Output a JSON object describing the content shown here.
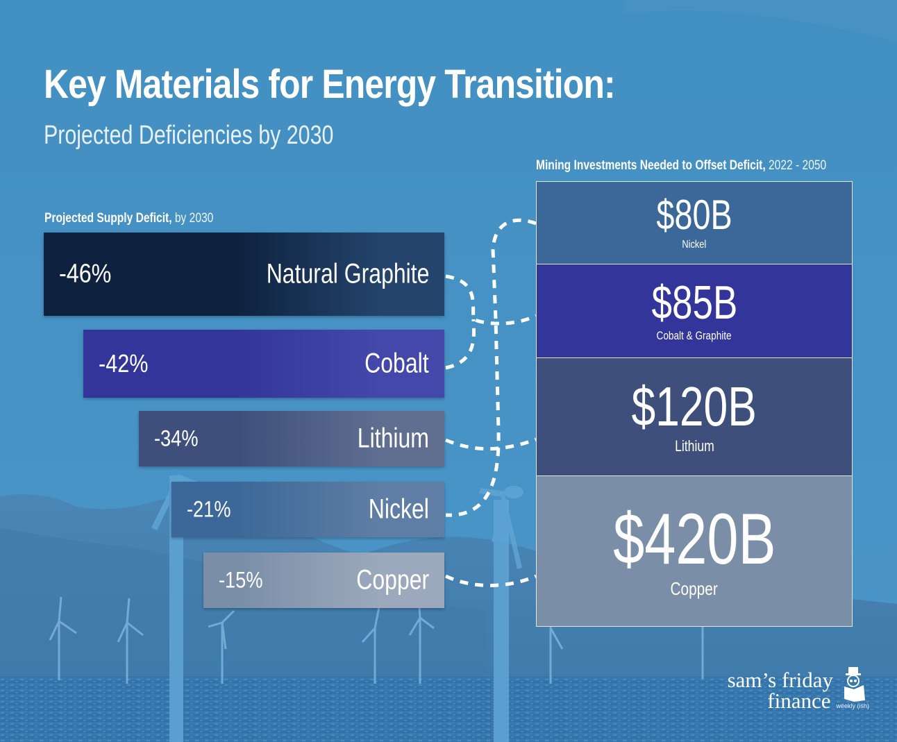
{
  "title": "Key Materials for Energy Transition:",
  "subtitle": "Projected Deficiencies by 2030",
  "left_section": {
    "label_bold": "Projected Supply Deficit,",
    "label_light": " by 2030"
  },
  "right_section": {
    "label_bold": "Mining Investments Needed to Offset Deficit,",
    "label_light": " 2022 - 2050"
  },
  "colors": {
    "background": "#4590c2",
    "natural_graphite": "#0e223f",
    "cobalt": "#33359a",
    "lithium": "#3d4f7a",
    "nickel": "#3b6898",
    "copper": "#7a8ea8",
    "connector": "#ffffff"
  },
  "chart_data": [
    {
      "type": "bar",
      "title": "Projected Supply Deficit, by 2030",
      "orientation": "horizontal",
      "categories": [
        "Natural Graphite",
        "Cobalt",
        "Lithium",
        "Nickel",
        "Copper"
      ],
      "values": [
        -46,
        -42,
        -34,
        -21,
        -15
      ],
      "labels": [
        "-46%",
        "-42%",
        "-34%",
        "-21%",
        "-15%"
      ],
      "unit": "%",
      "xlabel": "",
      "ylabel": ""
    },
    {
      "type": "table",
      "title": "Mining Investments Needed to Offset Deficit, 2022 - 2050",
      "categories": [
        "Nickel",
        "Cobalt & Graphite",
        "Lithium",
        "Copper"
      ],
      "values": [
        80,
        85,
        120,
        420
      ],
      "labels": [
        "$80B",
        "$85B",
        "$120B",
        "$420B"
      ],
      "unit": "USD billions"
    }
  ],
  "links": [
    {
      "from": "Natural Graphite",
      "to": "Cobalt & Graphite"
    },
    {
      "from": "Cobalt",
      "to": "Cobalt & Graphite"
    },
    {
      "from": "Lithium",
      "to": "Lithium"
    },
    {
      "from": "Nickel",
      "to": "Nickel"
    },
    {
      "from": "Copper",
      "to": "Copper"
    }
  ],
  "logo": {
    "line1": "sam’s friday",
    "line2": "finance",
    "tagline": "weekly (ish)"
  }
}
